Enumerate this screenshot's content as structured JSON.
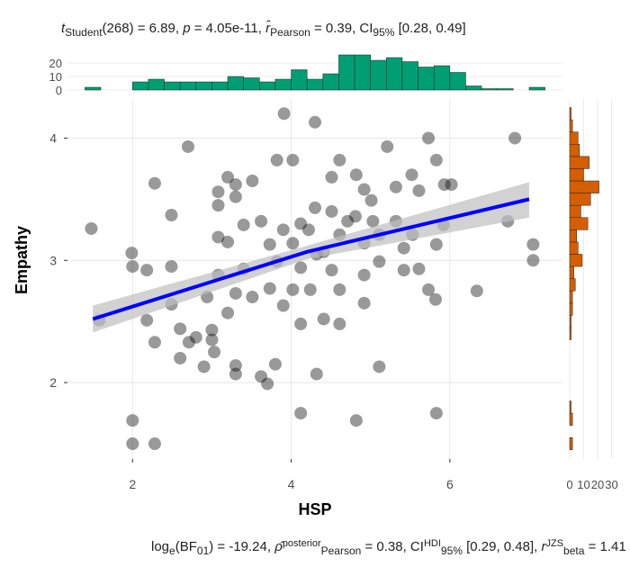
{
  "chart_data": [
    {
      "type": "scatter",
      "title_parts": [
        {
          "text": "t",
          "style": "italic"
        },
        {
          "text": "Student",
          "style": "sub"
        },
        {
          "text": "(268) = 6.89, ",
          "style": "normal"
        },
        {
          "text": "p",
          "style": "italic"
        },
        {
          "text": " = 4.05e-11, ",
          "style": "normal"
        },
        {
          "text": "r̂",
          "style": "italic"
        },
        {
          "text": "Pearson",
          "style": "sub"
        },
        {
          "text": " = 0.39, CI",
          "style": "normal"
        },
        {
          "text": "95%",
          "style": "sub"
        },
        {
          "text": " [0.28, 0.49]",
          "style": "normal"
        }
      ],
      "caption_parts": [
        {
          "text": "log",
          "style": "normal"
        },
        {
          "text": "e",
          "style": "sub"
        },
        {
          "text": "(BF",
          "style": "normal"
        },
        {
          "text": "01",
          "style": "sub"
        },
        {
          "text": ") = -19.24, ",
          "style": "normal"
        },
        {
          "text": "ρ̂",
          "style": "italic"
        },
        {
          "text": "posterior",
          "style": "sup"
        },
        {
          "text": "Pearson",
          "style": "sub"
        },
        {
          "text": " = 0.38, CI",
          "style": "normal"
        },
        {
          "text": "HDI",
          "style": "sup"
        },
        {
          "text": "95%",
          "style": "sub"
        },
        {
          "text": " [0.29, 0.48], ",
          "style": "normal"
        },
        {
          "text": "r",
          "style": "italic"
        },
        {
          "text": "JZS",
          "style": "sup"
        },
        {
          "text": "beta",
          "style": "sub"
        },
        {
          "text": " = 1.41",
          "style": "normal"
        }
      ],
      "x_label": "HSP",
      "y_label": "Empathy",
      "xlim": [
        1.18,
        7.42
      ],
      "ylim": [
        1.375,
        4.32
      ],
      "xticks": [
        2,
        4,
        6
      ],
      "yticks": [
        2,
        3,
        4
      ],
      "grid": true,
      "color": "#000000",
      "x": [
        1.48,
        1.58,
        2.0,
        2.0,
        2.28,
        1.99,
        2.0,
        2.18,
        2.49,
        2.28,
        2.49,
        2.18,
        2.28,
        2.49,
        2.6,
        2.6,
        2.71,
        2.8,
        2.7,
        2.9,
        3.0,
        3.0,
        3.03,
        3.08,
        3.08,
        3.2,
        3.3,
        3.3,
        3.08,
        3.2,
        3.08,
        3.3,
        3.2,
        3.3,
        3.3,
        3.4,
        3.4,
        3.51,
        3.62,
        3.7,
        3.8,
        3.73,
        3.82,
        3.73,
        3.9,
        3.82,
        3.91,
        4.02,
        4.12,
        4.02,
        4.12,
        4.02,
        4.12,
        4.12,
        4.3,
        4.3,
        4.22,
        4.32,
        4.24,
        4.41,
        4.32,
        4.51,
        4.61,
        4.51,
        4.61,
        4.51,
        4.61,
        4.61,
        4.82,
        4.82,
        4.92,
        4.81,
        4.92,
        4.92,
        4.92,
        5.01,
        5.11,
        5.11,
        5.11,
        5.21,
        5.32,
        5.32,
        5.42,
        5.42,
        5.52,
        5.61,
        5.73,
        5.83,
        5.61,
        5.73,
        5.82,
        5.93,
        6.02,
        5.83,
        5.92,
        5.83,
        6.34,
        6.82,
        6.73,
        7.05,
        7.05,
        4.41,
        4.71,
        5.03,
        5.53,
        3.62,
        3.9,
        3.51,
        2.94
      ],
      "values": [
        3.26,
        2.51,
        1.69,
        1.5,
        1.5,
        3.06,
        2.95,
        2.92,
        2.95,
        3.63,
        3.37,
        2.51,
        2.33,
        2.64,
        2.44,
        2.2,
        2.33,
        2.37,
        3.93,
        2.13,
        2.43,
        2.35,
        2.25,
        3.56,
        3.45,
        3.68,
        3.62,
        3.52,
        3.19,
        3.15,
        2.88,
        2.73,
        2.57,
        2.14,
        2.07,
        2.93,
        3.29,
        3.65,
        2.05,
        1.99,
        2.15,
        3.13,
        2.99,
        2.77,
        2.63,
        3.82,
        4.2,
        3.82,
        3.3,
        3.14,
        2.94,
        2.76,
        2.48,
        1.75,
        4.13,
        3.43,
        3.25,
        3.05,
        2.76,
        2.52,
        2.07,
        3.68,
        3.82,
        3.4,
        3.21,
        2.92,
        2.76,
        2.48,
        1.69,
        3.7,
        3.58,
        3.36,
        3.14,
        2.88,
        2.65,
        3.49,
        3.21,
        2.99,
        2.13,
        3.93,
        3.6,
        3.32,
        3.1,
        2.92,
        3.7,
        3.57,
        4.0,
        3.82,
        2.93,
        2.76,
        2.68,
        3.62,
        3.62,
        3.13,
        3.29,
        1.75,
        2.75,
        4.0,
        3.32,
        3.13,
        3.0,
        3.07,
        3.32,
        3.32,
        3.21,
        3.32,
        3.25,
        2.7,
        2.7
      ],
      "fit": {
        "color": "#0000ff",
        "band_color": "#bfbfbf",
        "x": [
          1.5,
          4.2,
          7.0
        ],
        "values": [
          2.52,
          3.07,
          3.5
        ],
        "lower": [
          2.41,
          3.01,
          3.35
        ],
        "upper": [
          2.63,
          3.12,
          3.64
        ]
      }
    },
    {
      "type": "histogram",
      "orientation": "vertical",
      "color": "#009e73",
      "bins": [
        1.4,
        1.6,
        1.8,
        2.0,
        2.2,
        2.4,
        2.6,
        2.8,
        3.0,
        3.2,
        3.4,
        3.6,
        3.8,
        4.0,
        4.2,
        4.4,
        4.6,
        4.8,
        5.0,
        5.2,
        5.4,
        5.6,
        5.8,
        6.0,
        6.2,
        6.4,
        6.6,
        6.8,
        7.0,
        7.2
      ],
      "values": [
        2,
        0,
        0,
        6,
        8,
        6,
        6,
        6,
        6,
        10,
        9,
        6,
        8,
        15,
        8,
        12,
        26,
        26,
        22,
        24,
        21,
        17,
        18,
        13,
        3,
        1,
        1,
        0,
        2
      ],
      "ylim": [
        0,
        30
      ],
      "yticks": [
        0,
        10,
        20
      ]
    },
    {
      "type": "histogram",
      "orientation": "horizontal",
      "color": "#d55e00",
      "bins": [
        1.45,
        1.55,
        1.65,
        1.75,
        1.85,
        1.95,
        2.05,
        2.15,
        2.25,
        2.35,
        2.45,
        2.55,
        2.65,
        2.75,
        2.85,
        2.95,
        3.05,
        3.15,
        3.25,
        3.35,
        3.45,
        3.55,
        3.65,
        3.75,
        3.85,
        3.95,
        4.05,
        4.15,
        4.25
      ],
      "values": [
        2,
        0,
        2,
        1,
        0,
        0,
        0,
        0,
        0,
        1,
        1,
        2,
        2,
        4,
        3,
        9,
        6,
        5,
        13,
        8,
        15,
        21,
        10,
        14,
        7,
        6,
        2,
        1
      ],
      "xlim": [
        0,
        40
      ],
      "xticks": [
        0,
        10,
        20,
        30
      ]
    }
  ]
}
